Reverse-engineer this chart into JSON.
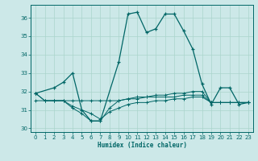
{
  "xlabel": "Humidex (Indice chaleur)",
  "bg_color": "#cce8e8",
  "grid_color": "#aad4cc",
  "line_color": "#006666",
  "xlim": [
    -0.5,
    23.5
  ],
  "ylim": [
    29.8,
    36.7
  ],
  "yticks": [
    30,
    31,
    32,
    33,
    34,
    35,
    36
  ],
  "xticks": [
    0,
    1,
    2,
    3,
    4,
    5,
    6,
    7,
    8,
    9,
    10,
    11,
    12,
    13,
    14,
    15,
    16,
    17,
    18,
    19,
    20,
    21,
    22,
    23
  ],
  "series1_x": [
    0,
    2,
    3,
    4,
    5,
    6,
    7,
    9,
    10,
    11,
    12,
    13,
    14,
    15,
    16,
    17,
    18,
    19,
    20,
    21,
    22,
    23
  ],
  "series1_y": [
    31.9,
    32.2,
    32.5,
    33.0,
    31.0,
    30.4,
    30.4,
    33.6,
    36.2,
    36.3,
    35.2,
    35.4,
    36.2,
    36.2,
    35.3,
    34.3,
    32.4,
    31.3,
    32.2,
    32.2,
    31.3,
    31.4
  ],
  "series2_x": [
    0,
    1,
    2,
    3,
    4,
    5,
    6,
    7,
    8,
    9,
    10,
    11,
    12,
    13,
    14,
    15,
    16,
    17,
    18,
    19,
    20,
    21,
    22,
    23
  ],
  "series2_y": [
    31.5,
    31.5,
    31.5,
    31.5,
    31.5,
    31.5,
    31.5,
    31.5,
    31.5,
    31.5,
    31.6,
    31.6,
    31.7,
    31.7,
    31.7,
    31.7,
    31.8,
    31.8,
    31.8,
    31.4,
    31.4,
    31.4,
    31.4,
    31.4
  ],
  "series3_x": [
    0,
    1,
    2,
    3,
    4,
    5,
    6,
    7,
    8,
    9,
    10,
    11,
    12,
    13,
    14,
    15,
    16,
    17,
    18,
    19,
    20,
    21,
    22,
    23
  ],
  "series3_y": [
    31.9,
    31.5,
    31.5,
    31.5,
    31.1,
    30.8,
    30.4,
    30.4,
    31.1,
    31.5,
    31.6,
    31.7,
    31.7,
    31.8,
    31.8,
    31.9,
    31.9,
    32.0,
    32.0,
    31.4,
    31.4,
    31.4,
    31.4,
    31.4
  ],
  "series4_x": [
    0,
    1,
    2,
    3,
    4,
    5,
    6,
    7,
    8,
    9,
    10,
    11,
    12,
    13,
    14,
    15,
    16,
    17,
    18,
    19,
    20,
    21,
    22,
    23
  ],
  "series4_y": [
    31.9,
    31.5,
    31.5,
    31.5,
    31.2,
    31.0,
    30.8,
    30.5,
    30.9,
    31.1,
    31.3,
    31.4,
    31.4,
    31.5,
    31.5,
    31.6,
    31.6,
    31.7,
    31.7,
    31.4,
    31.4,
    31.4,
    31.4,
    31.4
  ]
}
